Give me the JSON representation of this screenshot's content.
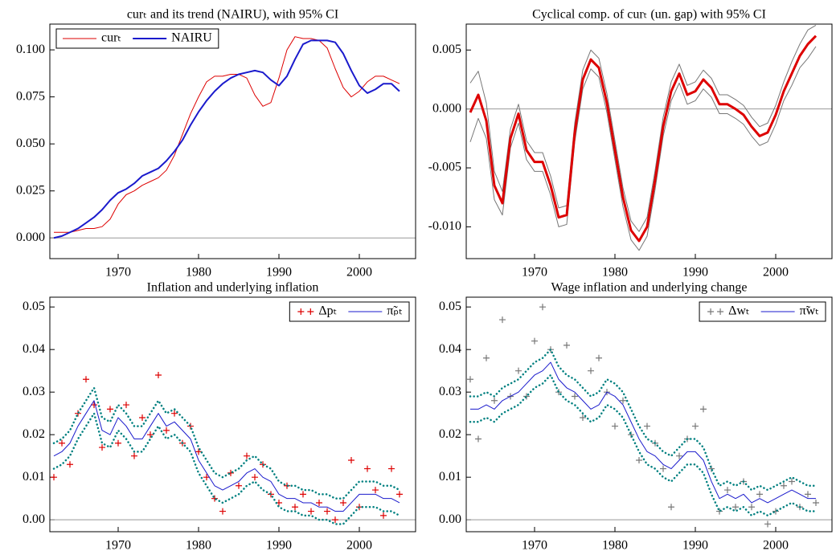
{
  "chart_data": [
    {
      "type": "line",
      "title": "curₜ and its trend (NAIRU), with 95% CI",
      "x": [
        1962,
        1963,
        1964,
        1965,
        1966,
        1967,
        1968,
        1969,
        1970,
        1971,
        1972,
        1973,
        1974,
        1975,
        1976,
        1977,
        1978,
        1979,
        1980,
        1981,
        1982,
        1983,
        1984,
        1985,
        1986,
        1987,
        1988,
        1989,
        1990,
        1991,
        1992,
        1993,
        1994,
        1995,
        1996,
        1997,
        1998,
        1999,
        2000,
        2001,
        2002,
        2003,
        2004,
        2005
      ],
      "xlim": [
        1961.5,
        2007
      ],
      "xticks": [
        1970,
        1980,
        1990,
        2000
      ],
      "ylim": [
        -0.011,
        0.1137
      ],
      "yticks": [
        {
          "value": 0,
          "label": "0.000"
        },
        0.025,
        {
          "value": 0.05,
          "label": "0.050"
        },
        0.075,
        {
          "value": 0.1,
          "label": "0.100"
        }
      ],
      "zero_line": true,
      "legend": "upper left",
      "series": [
        {
          "name": "curₜ",
          "color": "#dd0000",
          "style": "line",
          "width": 1,
          "values": [
            0.003,
            0.003,
            0.003,
            0.004,
            0.005,
            0.005,
            0.006,
            0.01,
            0.018,
            0.023,
            0.025,
            0.028,
            0.03,
            0.032,
            0.036,
            0.044,
            0.055,
            0.066,
            0.075,
            0.083,
            0.086,
            0.086,
            0.087,
            0.087,
            0.085,
            0.076,
            0.07,
            0.072,
            0.085,
            0.1,
            0.107,
            0.106,
            0.106,
            0.105,
            0.101,
            0.09,
            0.08,
            0.075,
            0.078,
            0.083,
            0.086,
            0.086,
            0.084,
            0.082
          ]
        },
        {
          "name": "NAIRU",
          "color": "#1a1acc",
          "style": "line",
          "width": 2,
          "values": [
            0.0,
            0.001,
            0.003,
            0.005,
            0.008,
            0.011,
            0.015,
            0.02,
            0.024,
            0.026,
            0.029,
            0.033,
            0.035,
            0.037,
            0.041,
            0.046,
            0.052,
            0.06,
            0.067,
            0.073,
            0.078,
            0.082,
            0.085,
            0.087,
            0.088,
            0.089,
            0.088,
            0.084,
            0.081,
            0.086,
            0.095,
            0.103,
            0.105,
            0.105,
            0.105,
            0.104,
            0.098,
            0.089,
            0.081,
            0.077,
            0.079,
            0.082,
            0.082,
            0.078
          ]
        }
      ]
    },
    {
      "type": "line",
      "title": "Cyclical comp. of curₜ (un. gap) with 95% CI",
      "x": [
        1962,
        1963,
        1964,
        1965,
        1966,
        1967,
        1968,
        1969,
        1970,
        1971,
        1972,
        1973,
        1974,
        1975,
        1976,
        1977,
        1978,
        1979,
        1980,
        1981,
        1982,
        1983,
        1984,
        1985,
        1986,
        1987,
        1988,
        1989,
        1990,
        1991,
        1992,
        1993,
        1994,
        1995,
        1996,
        1997,
        1998,
        1999,
        2000,
        2001,
        2002,
        2003,
        2004,
        2005
      ],
      "xlim": [
        1961.5,
        2007
      ],
      "xticks": [
        1970,
        1980,
        1990,
        2000
      ],
      "ylim": [
        -0.0127,
        0.0072
      ],
      "yticks": [
        {
          "value": -0.01,
          "label": "-0.010"
        },
        -0.005,
        {
          "value": 0,
          "label": "0.000"
        },
        0.005
      ],
      "zero_line": true,
      "series": [
        {
          "color": "#777777",
          "style": "line",
          "width": 1,
          "values": [
            0.0022,
            0.0032,
            0.0005,
            -0.0053,
            -0.007,
            -0.0017,
            0.0004,
            -0.0027,
            -0.0037,
            -0.0037,
            -0.0057,
            -0.0084,
            -0.0082,
            -0.0012,
            0.0033,
            0.005,
            0.0043,
            0.0013,
            -0.0027,
            -0.0067,
            -0.0095,
            -0.0104,
            -0.0092,
            -0.0052,
            -0.0007,
            0.0023,
            0.0038,
            0.002,
            0.0023,
            0.0033,
            0.0026,
            0.0012,
            0.0012,
            0.0008,
            0.0003,
            -0.0007,
            -0.0015,
            -0.0012,
            0.0003,
            0.0023,
            0.004,
            0.0055,
            0.0067,
            0.0071
          ]
        },
        {
          "color": "#777777",
          "style": "line",
          "width": 1,
          "values": [
            -0.0028,
            -0.0008,
            -0.0025,
            -0.0077,
            -0.009,
            -0.0033,
            -0.0012,
            -0.0043,
            -0.0053,
            -0.0053,
            -0.0073,
            -0.01,
            -0.0098,
            -0.0028,
            0.0017,
            0.0034,
            0.0027,
            -0.0003,
            -0.0043,
            -0.0083,
            -0.0111,
            -0.012,
            -0.0108,
            -0.0068,
            -0.0023,
            0.0007,
            0.0022,
            0.0004,
            0.0007,
            0.0017,
            0.001,
            -0.0004,
            -0.0004,
            -0.0008,
            -0.0013,
            -0.0023,
            -0.0031,
            -0.0028,
            -0.0013,
            0.0007,
            0.002,
            0.0035,
            0.0043,
            0.0053
          ]
        },
        {
          "color": "#dd0000",
          "style": "line",
          "width": 3,
          "values": [
            -0.0003,
            0.0012,
            -0.001,
            -0.0065,
            -0.008,
            -0.0025,
            -0.0004,
            -0.0035,
            -0.0045,
            -0.0045,
            -0.0065,
            -0.0092,
            -0.009,
            -0.002,
            0.0025,
            0.0042,
            0.0035,
            0.0005,
            -0.0035,
            -0.0075,
            -0.0103,
            -0.0112,
            -0.01,
            -0.006,
            -0.0015,
            0.0015,
            0.003,
            0.0012,
            0.0015,
            0.0025,
            0.0018,
            0.0004,
            0.0004,
            0,
            -0.0005,
            -0.0015,
            -0.0023,
            -0.002,
            -0.0005,
            0.0015,
            0.003,
            0.0045,
            0.0055,
            0.0062
          ]
        }
      ]
    },
    {
      "type": "line",
      "title": "Inflation and underlying inflation",
      "x": [
        1962,
        1963,
        1964,
        1965,
        1966,
        1967,
        1968,
        1969,
        1970,
        1971,
        1972,
        1973,
        1974,
        1975,
        1976,
        1977,
        1978,
        1979,
        1980,
        1981,
        1982,
        1983,
        1984,
        1985,
        1986,
        1987,
        1988,
        1989,
        1990,
        1991,
        1992,
        1993,
        1994,
        1995,
        1996,
        1997,
        1998,
        1999,
        2000,
        2001,
        2002,
        2003,
        2004,
        2005
      ],
      "xlim": [
        1961.5,
        2007
      ],
      "xticks": [
        1970,
        1980,
        1990,
        2000
      ],
      "ylim": [
        -0.0028,
        0.0523
      ],
      "yticks": [
        {
          "value": 0,
          "label": "0.00"
        },
        0.01,
        0.02,
        0.03,
        0.04,
        0.05
      ],
      "zero_line": true,
      "legend": "upper right",
      "series": [
        {
          "name": "Δpₜ",
          "color": "#dd0000",
          "style": "plus",
          "values": [
            0.01,
            0.018,
            0.013,
            0.025,
            0.033,
            0.027,
            0.017,
            0.026,
            0.018,
            0.027,
            0.015,
            0.024,
            0.02,
            0.034,
            0.021,
            0.025,
            0.018,
            0.022,
            0.016,
            0.01,
            0.005,
            0.002,
            0.011,
            0.008,
            0.015,
            0.01,
            0.013,
            0.006,
            0.004,
            0.008,
            0.003,
            0.006,
            0.002,
            0.004,
            0.002,
            0,
            0.004,
            0.014,
            0.003,
            0.012,
            0.007,
            0.001,
            0.012,
            0.006
          ]
        },
        {
          "name": "π̃ₚₜ",
          "color": "#1a1acc",
          "style": "line",
          "width": 1,
          "values": [
            0.015,
            0.016,
            0.018,
            0.022,
            0.025,
            0.028,
            0.021,
            0.02,
            0.024,
            0.022,
            0.019,
            0.019,
            0.022,
            0.025,
            0.022,
            0.023,
            0.021,
            0.019,
            0.014,
            0.011,
            0.008,
            0.007,
            0.008,
            0.009,
            0.011,
            0.012,
            0.01,
            0.009,
            0.006,
            0.005,
            0.005,
            0.004,
            0.004,
            0.003,
            0.003,
            0.002,
            0.002,
            0.004,
            0.006,
            0.006,
            0.006,
            0.005,
            0.005,
            0.004
          ]
        },
        {
          "color": "#008080",
          "style": "dotted",
          "width": 2.5,
          "values": [
            0.018,
            0.019,
            0.021,
            0.025,
            0.028,
            0.031,
            0.024,
            0.023,
            0.027,
            0.025,
            0.022,
            0.022,
            0.025,
            0.028,
            0.025,
            0.026,
            0.024,
            0.022,
            0.017,
            0.014,
            0.011,
            0.01,
            0.011,
            0.012,
            0.014,
            0.015,
            0.013,
            0.012,
            0.009,
            0.008,
            0.008,
            0.007,
            0.007,
            0.006,
            0.006,
            0.005,
            0.005,
            0.007,
            0.009,
            0.009,
            0.009,
            0.008,
            0.008,
            0.007
          ]
        },
        {
          "color": "#008080",
          "style": "dotted",
          "width": 2.5,
          "values": [
            0.012,
            0.013,
            0.015,
            0.019,
            0.022,
            0.025,
            0.018,
            0.017,
            0.021,
            0.019,
            0.016,
            0.016,
            0.019,
            0.022,
            0.019,
            0.02,
            0.018,
            0.016,
            0.011,
            0.008,
            0.005,
            0.004,
            0.005,
            0.006,
            0.008,
            0.009,
            0.007,
            0.006,
            0.003,
            0.002,
            0.002,
            0.001,
            0.001,
            0,
            0,
            -0.001,
            -0.001,
            0.001,
            0.003,
            0.003,
            0.003,
            0.002,
            0.002,
            0.001
          ]
        }
      ]
    },
    {
      "type": "line",
      "title": "Wage inflation and underlying change",
      "x": [
        1962,
        1963,
        1964,
        1965,
        1966,
        1967,
        1968,
        1969,
        1970,
        1971,
        1972,
        1973,
        1974,
        1975,
        1976,
        1977,
        1978,
        1979,
        1980,
        1981,
        1982,
        1983,
        1984,
        1985,
        1986,
        1987,
        1988,
        1989,
        1990,
        1991,
        1992,
        1993,
        1994,
        1995,
        1996,
        1997,
        1998,
        1999,
        2000,
        2001,
        2002,
        2003,
        2004,
        2005
      ],
      "xlim": [
        1961.5,
        2007
      ],
      "xticks": [
        1970,
        1980,
        1990,
        2000
      ],
      "ylim": [
        -0.0028,
        0.0523
      ],
      "yticks": [
        {
          "value": 0,
          "label": "0.00"
        },
        0.01,
        0.02,
        0.03,
        0.04,
        0.05
      ],
      "zero_line": true,
      "legend": "upper right",
      "series": [
        {
          "name": "Δwₜ",
          "color": "#777777",
          "style": "plus",
          "values": [
            0.033,
            0.019,
            0.038,
            0.028,
            0.047,
            0.029,
            0.035,
            0.029,
            0.042,
            0.05,
            0.04,
            0.03,
            0.041,
            0.029,
            0.024,
            0.035,
            0.038,
            0.03,
            0.022,
            0.028,
            0.02,
            0.014,
            0.022,
            0.018,
            0.012,
            0.003,
            0.015,
            0.019,
            0.022,
            0.026,
            0.012,
            0.002,
            0.007,
            0.003,
            0.009,
            0.003,
            0.006,
            -0.001,
            0.002,
            0.008,
            0.009,
            0.003,
            0.006,
            0.004
          ]
        },
        {
          "name": "π̃wₜ",
          "color": "#1a1acc",
          "style": "line",
          "width": 1,
          "values": [
            0.026,
            0.026,
            0.027,
            0.026,
            0.028,
            0.029,
            0.03,
            0.032,
            0.034,
            0.035,
            0.037,
            0.033,
            0.031,
            0.03,
            0.028,
            0.026,
            0.027,
            0.03,
            0.029,
            0.027,
            0.023,
            0.019,
            0.016,
            0.015,
            0.013,
            0.012,
            0.014,
            0.016,
            0.016,
            0.014,
            0.009,
            0.005,
            0.006,
            0.005,
            0.006,
            0.004,
            0.005,
            0.004,
            0.005,
            0.006,
            0.007,
            0.006,
            0.005,
            0.005
          ]
        },
        {
          "color": "#008080",
          "style": "dotted",
          "width": 2.5,
          "values": [
            0.029,
            0.029,
            0.03,
            0.029,
            0.031,
            0.032,
            0.033,
            0.035,
            0.037,
            0.038,
            0.04,
            0.036,
            0.034,
            0.033,
            0.031,
            0.029,
            0.03,
            0.033,
            0.032,
            0.03,
            0.026,
            0.022,
            0.019,
            0.018,
            0.016,
            0.015,
            0.017,
            0.019,
            0.019,
            0.017,
            0.012,
            0.008,
            0.009,
            0.008,
            0.009,
            0.007,
            0.008,
            0.007,
            0.008,
            0.009,
            0.01,
            0.009,
            0.008,
            0.008
          ]
        },
        {
          "color": "#008080",
          "style": "dotted",
          "width": 2.5,
          "values": [
            0.023,
            0.023,
            0.024,
            0.023,
            0.025,
            0.026,
            0.027,
            0.029,
            0.031,
            0.032,
            0.034,
            0.03,
            0.028,
            0.027,
            0.025,
            0.023,
            0.024,
            0.027,
            0.026,
            0.024,
            0.02,
            0.016,
            0.013,
            0.012,
            0.01,
            0.009,
            0.011,
            0.013,
            0.013,
            0.011,
            0.006,
            0.002,
            0.003,
            0.002,
            0.003,
            0.001,
            0.002,
            0.001,
            0.002,
            0.003,
            0.004,
            0.003,
            0.002,
            0.002
          ]
        }
      ]
    }
  ]
}
